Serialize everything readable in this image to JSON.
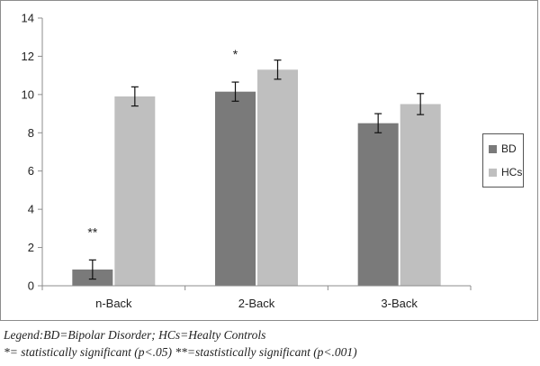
{
  "chart_data": {
    "type": "bar",
    "categories": [
      "n-Back",
      "2-Back",
      "3-Back"
    ],
    "series": [
      {
        "name": "BD",
        "color": "#7a7a7a",
        "values": [
          0.85,
          10.15,
          8.5
        ],
        "errors": [
          0.5,
          0.5,
          0.5
        ]
      },
      {
        "name": "HCs",
        "color": "#bfbfbf",
        "values": [
          9.9,
          11.3,
          9.5
        ],
        "errors": [
          0.5,
          0.5,
          0.55
        ]
      }
    ],
    "ylim": [
      0,
      14
    ],
    "yticks": [
      0,
      2,
      4,
      6,
      8,
      10,
      12,
      14
    ],
    "grid": false,
    "legend_position": "right",
    "annotations": [
      {
        "category": "n-Back",
        "text": "**"
      },
      {
        "category": "2-Back",
        "text": "*"
      }
    ]
  },
  "legend": {
    "items": [
      {
        "label": "BD",
        "color": "#7a7a7a"
      },
      {
        "label": "HCs",
        "color": "#bfbfbf"
      }
    ]
  },
  "caption": {
    "line1": "Legend:BD=Bipolar Disorder; HCs=Healty Controls",
    "line2": "*= statistically significant (p<.05) **=stastistically significant (p<.001)"
  }
}
